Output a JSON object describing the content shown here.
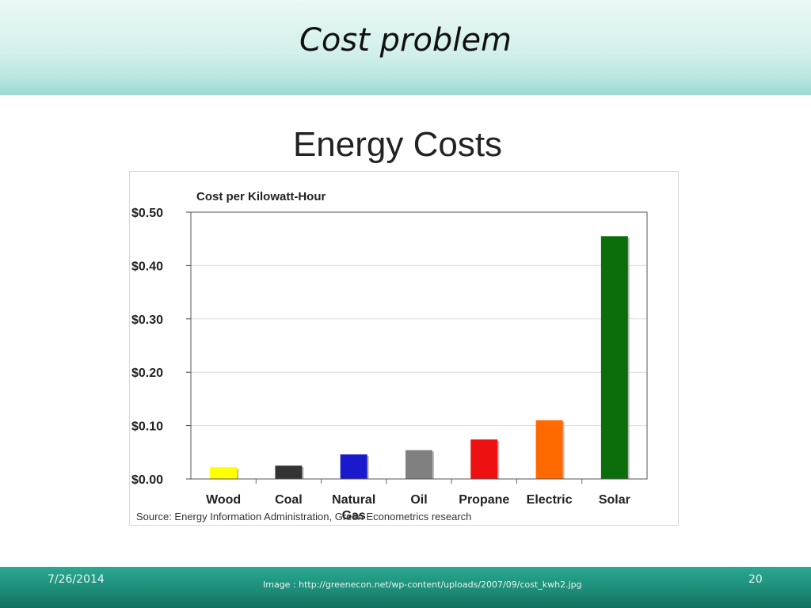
{
  "slide": {
    "title": "Cost problem",
    "footer_date": "7/26/2014",
    "footer_credit": "Image : http://greenecon.net/wp-content/uploads/2007/09/cost_kwh2.jpg",
    "page_number": "20"
  },
  "colors": {
    "Wood": "#ffff00",
    "Coal": "#333333",
    "Natural Gas": "#1a1acc",
    "Oil": "#808080",
    "Propane": "#ee1111",
    "Electric": "#ff6a00",
    "Solar": "#0b6e0b"
  },
  "chart_data": {
    "type": "bar",
    "title": "Energy Costs",
    "ylabel": "Cost per Kilowatt-Hour",
    "xlabel": "",
    "categories": [
      "Wood",
      "Coal",
      "Natural Gas",
      "Oil",
      "Propane",
      "Electric",
      "Solar"
    ],
    "category_lines": [
      [
        "Wood"
      ],
      [
        "Coal"
      ],
      [
        "Natural",
        "Gas"
      ],
      [
        "Oil"
      ],
      [
        "Propane"
      ],
      [
        "Electric"
      ],
      [
        "Solar"
      ]
    ],
    "values": [
      0.022,
      0.025,
      0.046,
      0.054,
      0.074,
      0.11,
      0.455
    ],
    "ylim": [
      0,
      0.5
    ],
    "yticks": [
      0,
      0.1,
      0.2,
      0.3,
      0.4,
      0.5
    ],
    "ytick_labels": [
      "$0.00",
      "$0.10",
      "$0.20",
      "$0.30",
      "$0.40",
      "$0.50"
    ],
    "grid": true,
    "source": "Source: Energy Information Administration, Green Econometrics research"
  }
}
